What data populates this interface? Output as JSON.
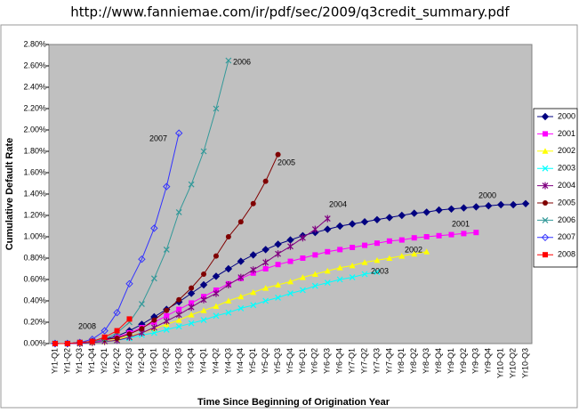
{
  "header": {
    "url": "http://www.fanniemae.com/ir/pdf/sec/2009/q3credit_summary.pdf"
  },
  "chart_data": {
    "type": "line",
    "ylabel": "Cumulative Default Rate",
    "xlabel": "Time Since Beginning of Origination Year",
    "categories": [
      "Yr1-Q1",
      "Yr1-Q2",
      "Yr1-Q3",
      "Yr1-Q4",
      "Yr2-Q1",
      "Yr2-Q2",
      "Yr2-Q3",
      "Yr2-Q4",
      "Yr3-Q1",
      "Yr3-Q2",
      "Yr3-Q3",
      "Yr3-Q4",
      "Yr4-Q1",
      "Yr4-Q2",
      "Yr4-Q3",
      "Yr4-Q4",
      "Yr5-Q1",
      "Yr5-Q2",
      "Yr5-Q3",
      "Yr5-Q4",
      "Yr6-Q1",
      "Yr6-Q2",
      "Yr6-Q3",
      "Yr6-Q4",
      "Yr7-Q1",
      "Yr7-Q2",
      "Yr7-Q3",
      "Yr7-Q4",
      "Yr8-Q1",
      "Yr8-Q2",
      "Yr8-Q3",
      "Yr8-Q4",
      "Yr9-Q1",
      "Yr9-Q2",
      "Yr9-Q3",
      "Yr9-Q4",
      "Yr10-Q1",
      "Yr10-Q2",
      "Yr10-Q3"
    ],
    "ylim": [
      0,
      2.8
    ],
    "yticks": [
      {
        "value": 0,
        "label": "0.00%"
      },
      {
        "value": 0.2,
        "label": "0.20%"
      },
      {
        "value": 0.4,
        "label": "0.40%"
      },
      {
        "value": 0.6,
        "label": "0.60%"
      },
      {
        "value": 0.8,
        "label": "0.80%"
      },
      {
        "value": 1.0,
        "label": "1.00%"
      },
      {
        "value": 1.2,
        "label": "1.20%"
      },
      {
        "value": 1.4,
        "label": "1.40%"
      },
      {
        "value": 1.6,
        "label": "1.60%"
      },
      {
        "value": 1.8,
        "label": "1.80%"
      },
      {
        "value": 2.0,
        "label": "2.00%"
      },
      {
        "value": 2.2,
        "label": "2.20%"
      },
      {
        "value": 2.4,
        "label": "2.40%"
      },
      {
        "value": 2.6,
        "label": "2.60%"
      },
      {
        "value": 2.8,
        "label": "2.80%"
      }
    ],
    "grid": false,
    "legend": "right",
    "series": [
      {
        "name": "2000",
        "color": "#000080",
        "marker": "diamond",
        "values": [
          0,
          0,
          0.01,
          0.02,
          0.04,
          0.07,
          0.12,
          0.18,
          0.25,
          0.32,
          0.39,
          0.47,
          0.55,
          0.63,
          0.7,
          0.77,
          0.83,
          0.88,
          0.93,
          0.97,
          1.01,
          1.04,
          1.07,
          1.1,
          1.12,
          1.14,
          1.16,
          1.18,
          1.2,
          1.22,
          1.23,
          1.25,
          1.26,
          1.27,
          1.28,
          1.29,
          1.3,
          1.3,
          1.31
        ]
      },
      {
        "name": "2001",
        "color": "#ff00ff",
        "marker": "square",
        "values": [
          0,
          0,
          0.01,
          0.02,
          0.03,
          0.06,
          0.1,
          0.15,
          0.2,
          0.26,
          0.32,
          0.38,
          0.44,
          0.5,
          0.56,
          0.61,
          0.66,
          0.7,
          0.74,
          0.77,
          0.8,
          0.83,
          0.86,
          0.88,
          0.9,
          0.92,
          0.94,
          0.96,
          0.97,
          0.99,
          1.0,
          1.01,
          1.02,
          1.03,
          1.04,
          null,
          null,
          null,
          null
        ]
      },
      {
        "name": "2002",
        "color": "#ffff00",
        "marker": "triangle",
        "values": [
          0,
          0,
          0,
          0.01,
          0.02,
          0.04,
          0.07,
          0.1,
          0.14,
          0.18,
          0.22,
          0.27,
          0.31,
          0.35,
          0.4,
          0.44,
          0.48,
          0.52,
          0.55,
          0.58,
          0.62,
          0.65,
          0.68,
          0.71,
          0.73,
          0.76,
          0.78,
          0.8,
          0.82,
          0.84,
          0.86,
          null,
          null,
          null,
          null,
          null,
          null,
          null,
          null
        ]
      },
      {
        "name": "2003",
        "color": "#00ffff",
        "marker": "x",
        "values": [
          0,
          0,
          0,
          0.01,
          0.02,
          0.03,
          0.05,
          0.08,
          0.1,
          0.13,
          0.16,
          0.19,
          0.22,
          0.26,
          0.29,
          0.33,
          0.36,
          0.4,
          0.43,
          0.47,
          0.5,
          0.54,
          0.57,
          0.6,
          0.62,
          0.65,
          0.67,
          null,
          null,
          null,
          null,
          null,
          null,
          null,
          null,
          null,
          null,
          null,
          null
        ]
      },
      {
        "name": "2004",
        "color": "#800080",
        "marker": "star",
        "values": [
          0,
          0,
          0,
          0.01,
          0.02,
          0.03,
          0.06,
          0.1,
          0.15,
          0.21,
          0.27,
          0.34,
          0.41,
          0.47,
          0.55,
          0.62,
          0.69,
          0.76,
          0.84,
          0.91,
          0.99,
          1.07,
          1.17,
          null,
          null,
          null,
          null,
          null,
          null,
          null,
          null,
          null,
          null,
          null,
          null,
          null,
          null,
          null,
          null
        ]
      },
      {
        "name": "2005",
        "color": "#800000",
        "marker": "circle",
        "values": [
          0,
          0,
          0.01,
          0.02,
          0.04,
          0.05,
          0.09,
          0.14,
          0.22,
          0.31,
          0.41,
          0.52,
          0.65,
          0.82,
          1.0,
          1.14,
          1.31,
          1.52,
          1.77,
          null,
          null,
          null,
          null,
          null,
          null,
          null,
          null,
          null,
          null,
          null,
          null,
          null,
          null,
          null,
          null,
          null,
          null,
          null,
          null
        ]
      },
      {
        "name": "2006",
        "color": "#339999",
        "marker": "x",
        "values": [
          0,
          0,
          0.01,
          0.02,
          0.04,
          0.1,
          0.2,
          0.37,
          0.61,
          0.88,
          1.23,
          1.49,
          1.8,
          2.2,
          2.65,
          null,
          null,
          null,
          null,
          null,
          null,
          null,
          null,
          null,
          null,
          null,
          null,
          null,
          null,
          null,
          null,
          null,
          null,
          null,
          null,
          null,
          null,
          null,
          null
        ]
      },
      {
        "name": "2007",
        "color": "#3333ff",
        "marker": "diamond-open",
        "values": [
          0,
          0,
          0.01,
          0.04,
          0.12,
          0.29,
          0.56,
          0.79,
          1.08,
          1.47,
          1.97,
          null,
          null,
          null,
          null,
          null,
          null,
          null,
          null,
          null,
          null,
          null,
          null,
          null,
          null,
          null,
          null,
          null,
          null,
          null,
          null,
          null,
          null,
          null,
          null,
          null,
          null,
          null,
          null
        ]
      },
      {
        "name": "2008",
        "color": "#ff0000",
        "marker": "square",
        "values": [
          0,
          0,
          0.01,
          0.02,
          0.06,
          0.12,
          0.23,
          null,
          null,
          null,
          null,
          null,
          null,
          null,
          null,
          null,
          null,
          null,
          null,
          null,
          null,
          null,
          null,
          null,
          null,
          null,
          null,
          null,
          null,
          null,
          null,
          null,
          null,
          null,
          null,
          null,
          null,
          null,
          null
        ]
      }
    ],
    "annotations": [
      "2000",
      "2001",
      "2002",
      "2003",
      "2004",
      "2005",
      "2006",
      "2007",
      "2008"
    ]
  }
}
